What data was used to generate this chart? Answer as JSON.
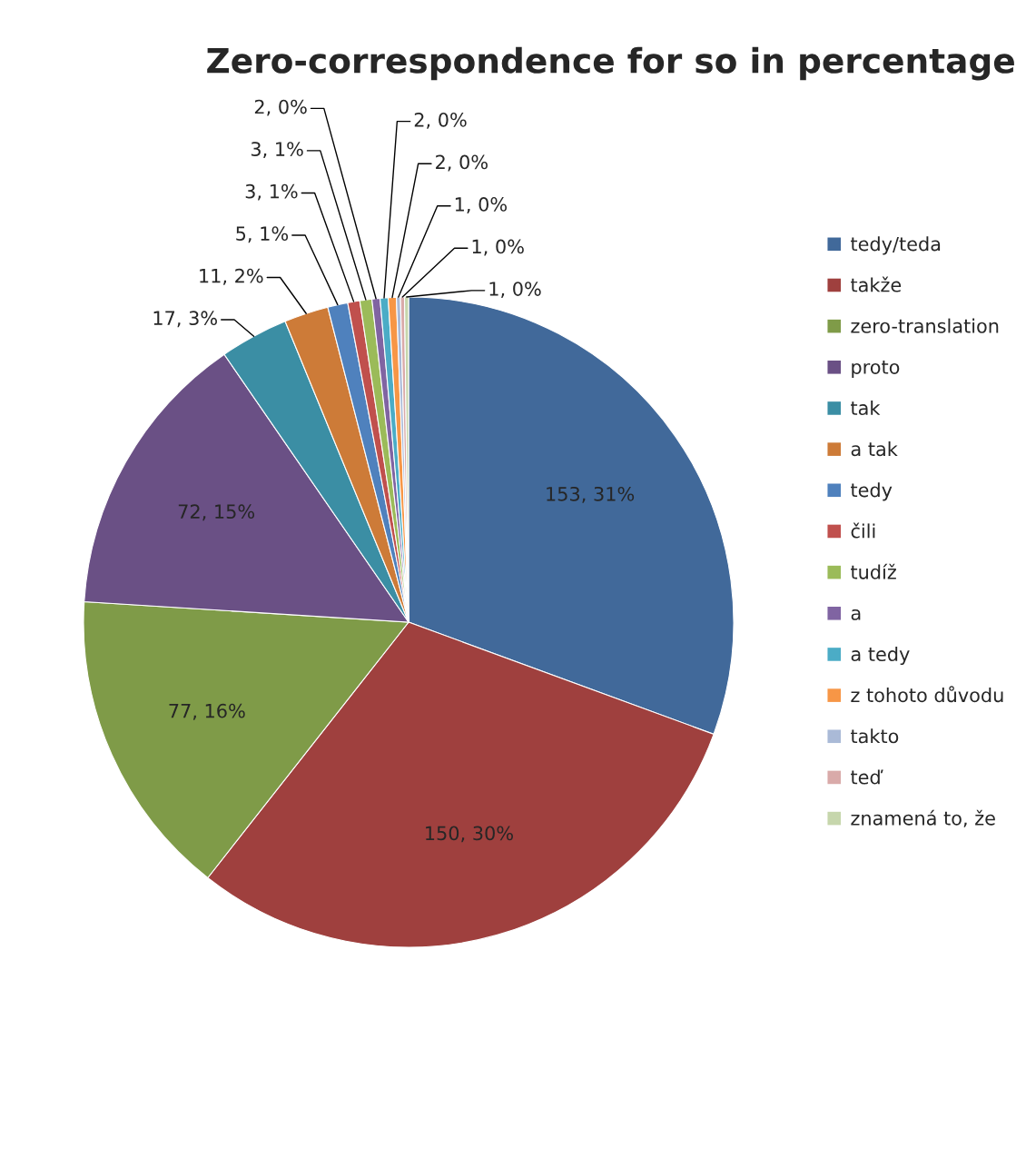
{
  "chart_data": {
    "type": "pie",
    "title": "Zero-correspondence for so in percentage",
    "categories": [
      "tedy/teda",
      "takže",
      "zero-translation",
      "proto",
      "tak",
      "a tak",
      "tedy",
      "čili",
      "tudíž",
      "a",
      "a tedy",
      "z tohoto důvodu",
      "takto",
      "teď",
      "znamená to, že"
    ],
    "values": [
      153,
      150,
      77,
      72,
      17,
      11,
      5,
      3,
      3,
      2,
      2,
      2,
      1,
      1,
      1
    ],
    "colors": [
      "#41699a",
      "#9f403e",
      "#7f9b48",
      "#6a5085",
      "#3b8ea4",
      "#cd7b38",
      "#4f81bd",
      "#c0504d",
      "#9bbb59",
      "#8064a2",
      "#4bacc6",
      "#f79646",
      "#aabad7",
      "#d9aaa9",
      "#c6d6ac"
    ],
    "value_labels": [
      "153, 31%",
      "150, 30%",
      "77, 16%",
      "72, 15%",
      "17, 3%",
      "11, 2%",
      "5, 1%",
      "3, 1%",
      "3, 1%",
      "2, 0%",
      "2, 0%",
      "2, 0%",
      "1, 0%",
      "1, 0%",
      "1, 0%"
    ],
    "legend": "right"
  }
}
